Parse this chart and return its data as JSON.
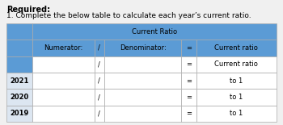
{
  "title_line1": "Required:",
  "title_line2": "1. Complete the below table to calculate each year’s current ratio.",
  "header_main": "Current Ratio",
  "col_numerator": "Numerator:",
  "col_slash": "/",
  "col_denominator": "Denominator:",
  "col_equals": "=",
  "col_current_ratio": "Current ratio",
  "subheader_current_ratio": "Current ratio",
  "years": [
    "2021",
    "2020",
    "2019"
  ],
  "to1_labels": [
    "to 1",
    "to 1",
    "to 1"
  ],
  "header_bg": "#5b9bd5",
  "row_bg": "#ffffff",
  "year_col_bg": "#dce6f1",
  "table_border": "#aaaaaa",
  "title_font_size": 7.0,
  "cell_font_size": 6.0,
  "background_color": "#f0f0f0"
}
